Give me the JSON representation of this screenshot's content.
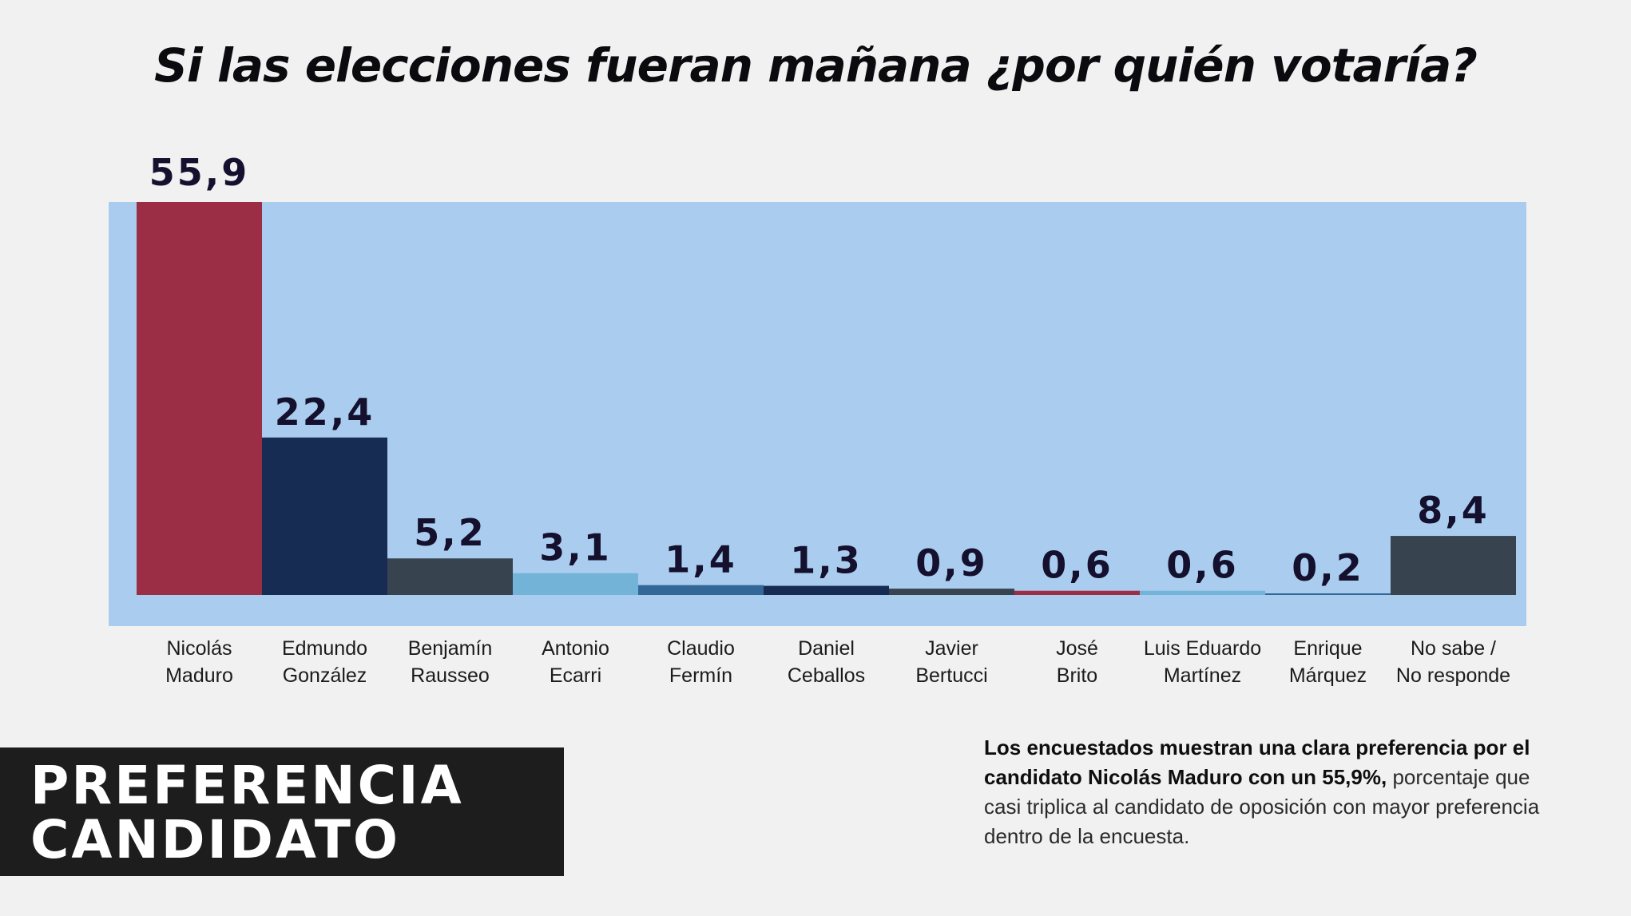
{
  "title": "Si las elecciones fueran mañana ¿por quién votaría?",
  "chart_data": {
    "type": "bar",
    "title": "Si las elecciones fueran mañana ¿por quién votaría?",
    "xlabel": "",
    "ylabel": "",
    "ylim": [
      0,
      55.9
    ],
    "grid": false,
    "legend": "none",
    "background_color": "#aacdef",
    "categories": [
      [
        "Nicolás",
        "Maduro"
      ],
      [
        "Edmundo",
        "González"
      ],
      [
        "Benjamín",
        "Rausseo"
      ],
      [
        "Antonio",
        "Ecarri"
      ],
      [
        "Claudio",
        "Fermín"
      ],
      [
        "Daniel",
        "Ceballos"
      ],
      [
        "Javier",
        "Bertucci"
      ],
      [
        "José",
        "Brito"
      ],
      [
        "Luis Eduardo",
        "Martínez"
      ],
      [
        "Enrique",
        "Márquez"
      ],
      [
        "No sabe /",
        "No responde"
      ]
    ],
    "values": [
      55.9,
      22.4,
      5.2,
      3.1,
      1.4,
      1.3,
      0.9,
      0.6,
      0.6,
      0.2,
      8.4
    ],
    "value_labels": [
      "55,9",
      "22,4",
      "5,2",
      "3,1",
      "1,4",
      "1,3",
      "0,9",
      "0,6",
      "0,6",
      "0,2",
      "8,4"
    ],
    "colors": [
      "#9b2e44",
      "#172c52",
      "#384350",
      "#74b3d8",
      "#336797",
      "#172c52",
      "#384350",
      "#9b2e44",
      "#74b3d8",
      "#336797",
      "#384350"
    ]
  },
  "badge": {
    "line1": "PREFERENCIA",
    "line2": "CANDIDATO"
  },
  "note": {
    "bold_text": "Los encuestados muestran una clara preferencia por el candidato Nicolás Maduro con un 55,9%,",
    "regular_text": "porcentaje que casi triplica al candidato de oposición con mayor preferencia dentro de la encuesta."
  }
}
